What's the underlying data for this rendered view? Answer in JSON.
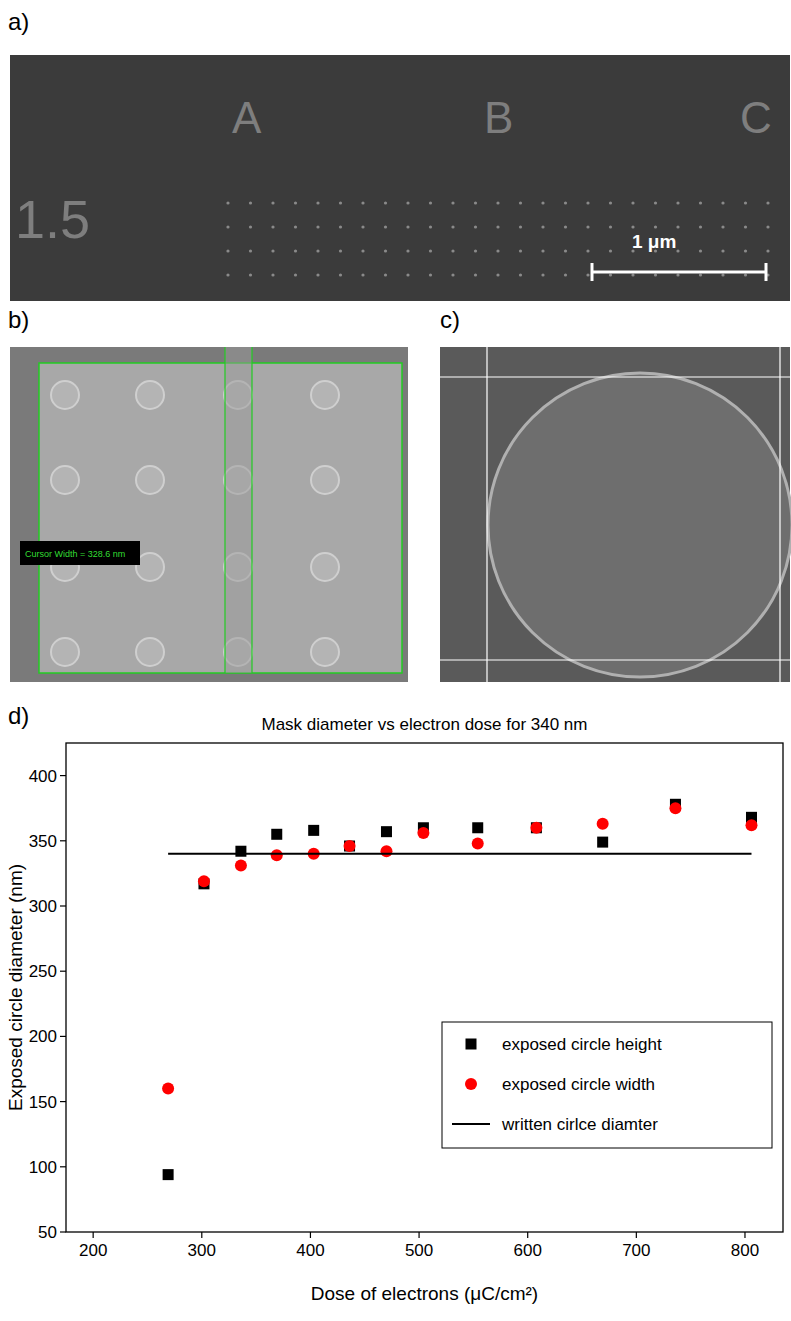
{
  "figure": {
    "panel_labels": [
      "a)",
      "b)",
      "c)",
      "d)"
    ],
    "panel_a": {
      "texts": [
        "1.5",
        "A",
        "B",
        "C"
      ],
      "scale_bar": "1 μm"
    },
    "panel_b": {
      "cursor_label": "Cursor Width = 328.6 nm"
    }
  },
  "chart_data": {
    "type": "scatter",
    "title": "Mask diameter vs electron dose for 340 nm",
    "x_label": "Dose of electrons (μC/cm²)",
    "y_label": "Exposed circle diameter (nm)",
    "x": [
      269,
      302,
      336,
      369,
      403,
      436,
      470,
      504,
      554,
      608,
      669,
      736,
      806
    ],
    "series": [
      {
        "name": "exposed circle height",
        "color": "#000000",
        "marker": "square",
        "values": [
          94,
          317,
          342,
          355,
          358,
          346,
          357,
          360,
          360,
          360,
          349,
          378,
          368
        ]
      },
      {
        "name": "exposed circle width",
        "color": "#ff0000",
        "marker": "circle",
        "values": [
          160,
          319,
          331,
          339,
          340,
          346,
          342,
          356,
          348,
          360,
          363,
          375,
          362
        ]
      },
      {
        "name": "written cirlce diamter",
        "color": "#000000",
        "type": "line",
        "line_style": "solid",
        "x": [
          269,
          806
        ],
        "values": [
          340,
          340
        ]
      }
    ],
    "xlim": [
      175,
      835
    ],
    "xticks": [
      200,
      300,
      400,
      500,
      600,
      700,
      800
    ],
    "ylim": [
      50,
      425
    ],
    "yticks": [
      50,
      100,
      150,
      200,
      250,
      300,
      350,
      400
    ],
    "grid": false,
    "legend": "right"
  }
}
